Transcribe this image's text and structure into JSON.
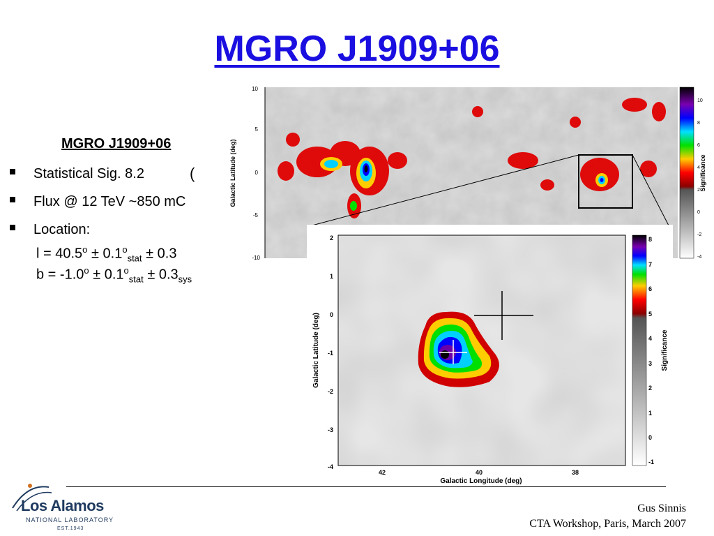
{
  "slide": {
    "title": "MGRO J1909+06",
    "sub_heading": "MGRO J1909+06",
    "bullets": [
      "Statistical Sig. 8.2",
      "Flux @ 12 TeV ~850 mC",
      "Location:"
    ],
    "location": {
      "l_prefix": "l = 40.5",
      "o": "o",
      "pm": "±",
      "val_stat": "0.1",
      "stat": "stat",
      "sys_val_l": "0.3",
      "b_prefix": "b = -1.0",
      "sys_val_b": "0.3",
      "sys": "sys"
    },
    "sigma_glyph": "(",
    "footer_line1": "Gus Sinnis",
    "footer_line2": "CTA Workshop, Paris, March 2007",
    "logo": {
      "name": "Los Alamos",
      "sub": "NATIONAL LABORATORY",
      "est": "EST.1943"
    }
  },
  "top_map": {
    "ylabel": "Galactic Latitude (deg)",
    "yticks": [
      "10",
      "5",
      "0",
      "-5",
      "-10"
    ],
    "colorbar_label": "Significance",
    "colorbar_ticks": [
      "10",
      "8",
      "6",
      "4",
      "2",
      "0",
      "-2",
      "-4"
    ]
  },
  "inset_map": {
    "xlabel": "Galactic Longitude (deg)",
    "ylabel": "Galactic Latitude (deg)",
    "xticks": [
      "42",
      "40",
      "38"
    ],
    "yticks": [
      "2",
      "1",
      "0",
      "-1",
      "-2",
      "-3",
      "-4"
    ],
    "colorbar_label": "Significance",
    "colorbar_ticks": [
      "8",
      "7",
      "6",
      "5",
      "4",
      "3",
      "2",
      "1",
      "0",
      "-1"
    ]
  },
  "colors": {
    "title": "#1a0fe0",
    "hot_red": "#d00000",
    "logo_blue": "#1f3a5f"
  }
}
